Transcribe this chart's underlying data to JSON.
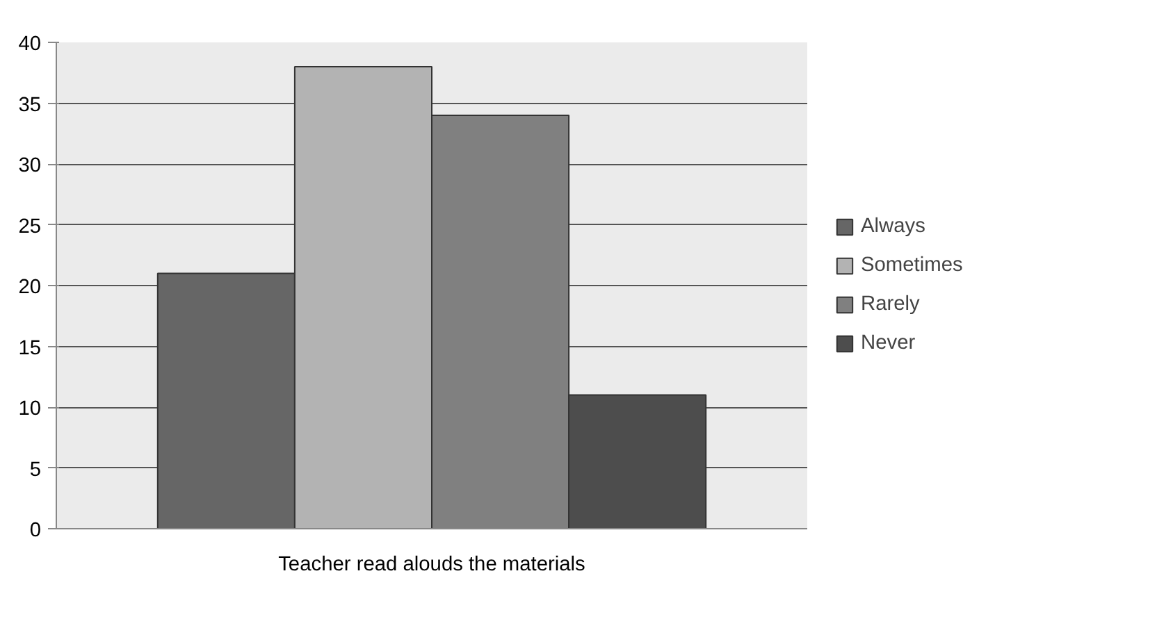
{
  "chart_data": {
    "type": "bar",
    "categories": [
      "Teacher read alouds the materials"
    ],
    "series": [
      {
        "name": "Always",
        "color": "#666666",
        "values": [
          21
        ]
      },
      {
        "name": "Sometimes",
        "color": "#b3b3b3",
        "values": [
          38
        ]
      },
      {
        "name": "Rarely",
        "color": "#808080",
        "values": [
          34
        ]
      },
      {
        "name": "Never",
        "color": "#4d4d4d",
        "values": [
          11
        ]
      }
    ],
    "ylim": [
      0,
      40
    ],
    "yticks": [
      0,
      5,
      10,
      15,
      20,
      25,
      30,
      35,
      40
    ],
    "grid": "y",
    "legend": "right"
  }
}
